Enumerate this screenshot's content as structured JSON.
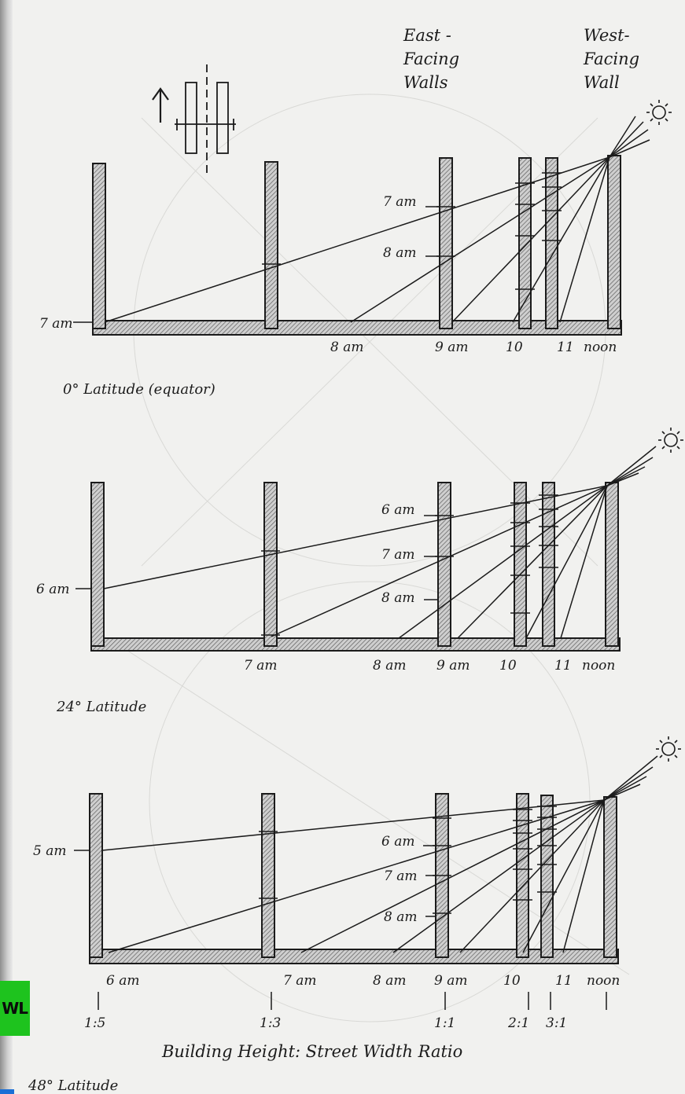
{
  "header": {
    "east_label": [
      "East -",
      "Facing",
      "Walls"
    ],
    "west_label": [
      "West-",
      "Facing",
      "Wall"
    ]
  },
  "diagrams": [
    {
      "id": "equator",
      "caption": "0° Latitude (equator)",
      "wall_labels": [
        {
          "text": "7 am",
          "side": "left"
        },
        {
          "text": "7 am",
          "side": "left"
        },
        {
          "text": "8 am",
          "side": "left"
        }
      ],
      "ground_labels": [
        "8 am",
        "9 am",
        "10",
        "11",
        "noon"
      ]
    },
    {
      "id": "lat24",
      "caption": "24° Latitude",
      "wall_labels": [
        {
          "text": "6 am",
          "side": "left"
        },
        {
          "text": "6 am",
          "side": "left"
        },
        {
          "text": "7 am",
          "side": "left"
        },
        {
          "text": "8 am",
          "side": "left"
        }
      ],
      "ground_labels": [
        "7 am",
        "8 am",
        "9 am",
        "10",
        "11",
        "noon"
      ]
    },
    {
      "id": "lat48",
      "caption": "48° Latitude",
      "wall_labels": [
        {
          "text": "5 am",
          "side": "left"
        },
        {
          "text": "6 am",
          "side": "left"
        },
        {
          "text": "7 am",
          "side": "left"
        },
        {
          "text": "8 am",
          "side": "left"
        }
      ],
      "ground_labels": [
        "6 am",
        "7 am",
        "8 am",
        "9 am",
        "10",
        "11",
        "noon"
      ]
    }
  ],
  "ratios": [
    "1:5",
    "1:3",
    "1:1",
    "2:1",
    "3:1"
  ],
  "ratio_title": "Building Height: Street Width Ratio",
  "badge": {
    "text": "WL"
  }
}
